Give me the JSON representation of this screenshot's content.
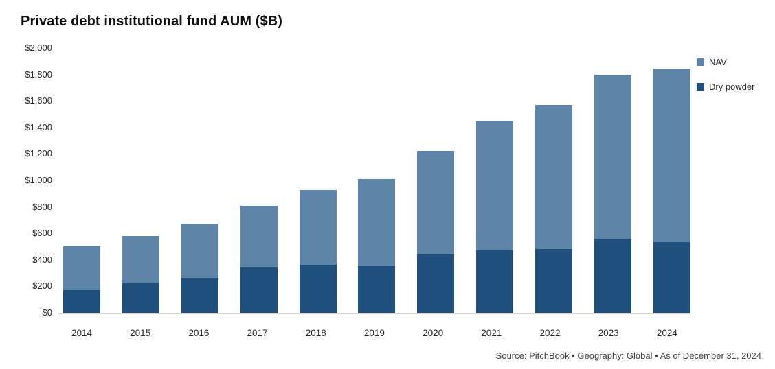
{
  "title": "Private debt institutional fund AUM ($B)",
  "footer": "Source: PitchBook  •  Geography: Global  •  As of December 31, 2024",
  "legend": [
    {
      "label": "NAV",
      "color": "#5e84a8"
    },
    {
      "label": "Dry powder",
      "color": "#1e4f7d"
    }
  ],
  "chart_data": {
    "type": "bar",
    "stacked": true,
    "title": "Private debt institutional fund AUM ($B)",
    "xlabel": "",
    "ylabel": "AUM ($B)",
    "ylim": [
      0,
      2000
    ],
    "grid": false,
    "legend_position": "right",
    "categories": [
      "2014",
      "2015",
      "2016",
      "2017",
      "2018",
      "2019",
      "2020",
      "2021",
      "2022",
      "2023",
      "2024"
    ],
    "series": [
      {
        "name": "Dry powder",
        "color": "#1e4f7d",
        "values": [
          170,
          225,
          260,
          340,
          365,
          355,
          440,
          470,
          480,
          555,
          535
        ]
      },
      {
        "name": "NAV",
        "color": "#5e84a8",
        "values": [
          335,
          355,
          415,
          470,
          565,
          655,
          785,
          980,
          1090,
          1245,
          1310
        ]
      }
    ],
    "totals": [
      505,
      580,
      675,
      810,
      930,
      1010,
      1225,
      1450,
      1570,
      1800,
      1845
    ],
    "yticks": [
      {
        "value": 0,
        "label": "$0"
      },
      {
        "value": 200,
        "label": "$200"
      },
      {
        "value": 400,
        "label": "$400"
      },
      {
        "value": 600,
        "label": "$600"
      },
      {
        "value": 800,
        "label": "$800"
      },
      {
        "value": 1000,
        "label": "$1,000"
      },
      {
        "value": 1200,
        "label": "$1,200"
      },
      {
        "value": 1400,
        "label": "$1,400"
      },
      {
        "value": 1600,
        "label": "$1,600"
      },
      {
        "value": 1800,
        "label": "$1,800"
      },
      {
        "value": 2000,
        "label": "$2,000"
      }
    ]
  }
}
